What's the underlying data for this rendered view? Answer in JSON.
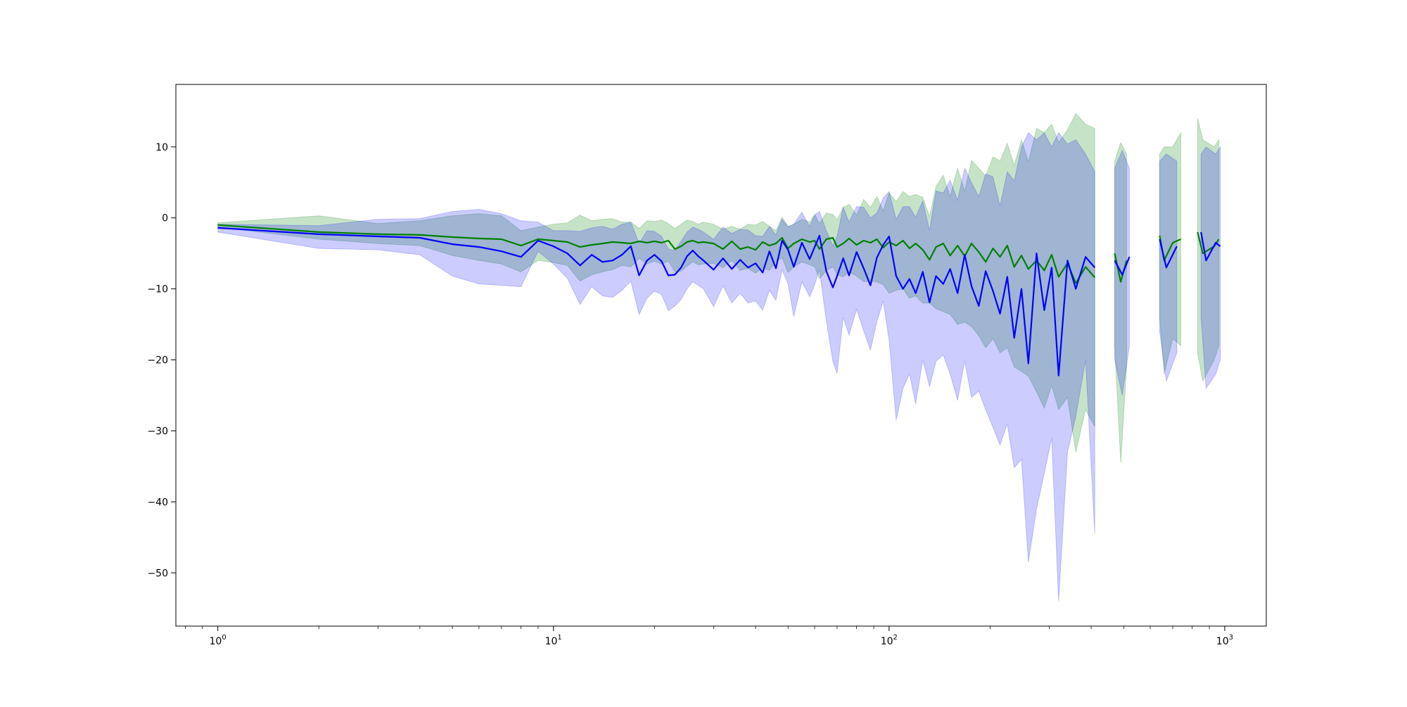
{
  "chart_data": {
    "type": "line",
    "title": "",
    "xlabel": "",
    "ylabel": "",
    "xscale": "log",
    "xlim": [
      0.75,
      1330
    ],
    "ylim": [
      -57.5,
      18.8
    ],
    "x_ticks": [
      {
        "value": 1,
        "label": "10",
        "exp": "0"
      },
      {
        "value": 10,
        "label": "10",
        "exp": "1"
      },
      {
        "value": 100,
        "label": "10",
        "exp": "2"
      },
      {
        "value": 1000,
        "label": "10",
        "exp": "3"
      }
    ],
    "y_ticks": [
      {
        "value": 10,
        "label": "10"
      },
      {
        "value": 0,
        "label": "0"
      },
      {
        "value": -10,
        "label": "−10"
      },
      {
        "value": -20,
        "label": "−20"
      },
      {
        "value": -30,
        "label": "−30"
      },
      {
        "value": -40,
        "label": "−40"
      },
      {
        "value": -50,
        "label": "−50"
      }
    ],
    "grid": false,
    "legend": "none",
    "series": [
      {
        "color": "#008000",
        "band_color": "#008000",
        "band_opacity": 0.22,
        "points": [
          [
            1,
            -1.0,
            -0.7,
            -1.3
          ],
          [
            2,
            -2.0,
            0.3,
            -3.0
          ],
          [
            3,
            -2.3,
            -0.8,
            -3.6
          ],
          [
            4,
            -2.4,
            -0.4,
            -3.9
          ],
          [
            5,
            -2.7,
            0.3,
            -5.3
          ],
          [
            6,
            -2.9,
            0.6,
            -6.0
          ],
          [
            7,
            -3.0,
            0.3,
            -6.5
          ],
          [
            8,
            -3.9,
            -1.8,
            -7.6
          ],
          [
            9,
            -3.0,
            -1.3,
            -6.0
          ],
          [
            10,
            -3.2,
            -0.9,
            -6.3
          ],
          [
            11,
            -3.4,
            -0.7,
            -6.7
          ],
          [
            12,
            -4.1,
            0.4,
            -8.9
          ],
          [
            13,
            -3.8,
            -0.4,
            -8.0
          ],
          [
            14,
            -3.6,
            -0.2,
            -7.6
          ],
          [
            15,
            -3.4,
            -0.1,
            -7.3
          ],
          [
            16,
            -3.5,
            -0.6,
            -6.7
          ],
          [
            17,
            -3.6,
            -0.6,
            -6.9
          ],
          [
            18,
            -3.3,
            -1.5,
            -5.7
          ],
          [
            19,
            -3.5,
            -0.4,
            -6.5
          ],
          [
            20,
            -3.3,
            -0.5,
            -6.1
          ],
          [
            21,
            -3.5,
            -0.3,
            -6.5
          ],
          [
            22,
            -3.2,
            -0.8,
            -6.1
          ],
          [
            23,
            -4.4,
            -1.5,
            -7.6
          ],
          [
            24,
            -4.0,
            -0.9,
            -7.5
          ],
          [
            25,
            -3.4,
            -0.3,
            -6.8
          ],
          [
            26,
            -3.2,
            -0.5,
            -6.2
          ],
          [
            27,
            -3.5,
            -0.9,
            -6.6
          ],
          [
            28,
            -3.4,
            -0.6,
            -6.5
          ],
          [
            30,
            -3.6,
            -0.9,
            -6.4
          ],
          [
            32,
            -4.4,
            -1.6,
            -7.0
          ],
          [
            34,
            -3.3,
            -1.2,
            -6.0
          ],
          [
            36,
            -4.4,
            -1.6,
            -7.4
          ],
          [
            38,
            -4.1,
            -0.9,
            -7.1
          ],
          [
            40,
            -4.5,
            -1.0,
            -7.8
          ],
          [
            42,
            -3.4,
            -0.5,
            -7.0
          ],
          [
            44,
            -3.9,
            -1.2,
            -7.4
          ],
          [
            46,
            -3.6,
            -1.8,
            -6.2
          ],
          [
            48,
            -2.8,
            0.1,
            -5.6
          ],
          [
            50,
            -4.3,
            -1.2,
            -7.7
          ],
          [
            52,
            -3.6,
            -0.9,
            -6.9
          ],
          [
            55,
            -3.0,
            -0.2,
            -6.2
          ],
          [
            58,
            -3.4,
            -0.6,
            -6.6
          ],
          [
            60,
            -3.2,
            0.5,
            -6.9
          ],
          [
            62,
            -4.4,
            -0.8,
            -8.6
          ],
          [
            65,
            -3.0,
            0.7,
            -7.4
          ],
          [
            68,
            -2.8,
            0.5,
            -6.9
          ],
          [
            70,
            -4.1,
            -0.3,
            -8.0
          ],
          [
            73,
            -3.6,
            1.5,
            -8.3
          ],
          [
            76,
            -2.9,
            1.9,
            -7.6
          ],
          [
            80,
            -3.8,
            0.4,
            -8.2
          ],
          [
            84,
            -3.2,
            2.6,
            -9.0
          ],
          [
            88,
            -3.5,
            1.5,
            -8.9
          ],
          [
            92,
            -3.0,
            3.0,
            -9.0
          ],
          [
            96,
            -4.2,
            1.0,
            -9.4
          ],
          [
            100,
            -3.4,
            3.5,
            -10.6
          ],
          [
            105,
            -3.9,
            2.3,
            -10.2
          ],
          [
            110,
            -3.2,
            3.7,
            -10.0
          ],
          [
            115,
            -4.3,
            3.0,
            -11.3
          ],
          [
            120,
            -3.6,
            3.3,
            -11.0
          ],
          [
            126,
            -4.5,
            2.9,
            -12.0
          ],
          [
            132,
            -5.9,
            0.2,
            -12.0
          ],
          [
            138,
            -4.1,
            4.4,
            -12.8
          ],
          [
            145,
            -3.6,
            6.0,
            -13.2
          ],
          [
            152,
            -5.3,
            3.0,
            -13.6
          ],
          [
            160,
            -3.9,
            7.0,
            -15.0
          ],
          [
            168,
            -5.4,
            3.8,
            -14.7
          ],
          [
            176,
            -3.6,
            8.1,
            -15.3
          ],
          [
            185,
            -4.8,
            7.0,
            -16.6
          ],
          [
            194,
            -6.2,
            5.9,
            -18.3
          ],
          [
            204,
            -4.3,
            8.6,
            -17.0
          ],
          [
            214,
            -5.5,
            8.0,
            -19.0
          ],
          [
            225,
            -3.9,
            10.5,
            -18.3
          ],
          [
            236,
            -6.9,
            7.4,
            -21.0
          ],
          [
            248,
            -5.3,
            11.0,
            -21.6
          ],
          [
            260,
            -7.2,
            7.9,
            -22.3
          ],
          [
            275,
            -6.0,
            12.6,
            -24.5
          ],
          [
            290,
            -7.4,
            12.0,
            -26.8
          ],
          [
            305,
            -5.2,
            13.2,
            -23.6
          ],
          [
            320,
            -8.3,
            10.6,
            -27.0
          ],
          [
            340,
            -6.4,
            12.4,
            -25.3
          ],
          [
            360,
            -9.2,
            14.7,
            -33.0
          ],
          [
            385,
            -6.9,
            13.2,
            -27.0
          ],
          [
            410,
            -8.4,
            12.6,
            -29.4
          ]
        ],
        "segments": [
          [
            [
              470,
              -5.0,
              8.0,
              -18.0
            ],
            [
              490,
              -9.0,
              10.6,
              -34.5
            ],
            [
              510,
              -6.0,
              9.0,
              -21.0
            ]
          ],
          [
            [
              640,
              -2.5,
              9.0,
              -14.0
            ],
            [
              660,
              -6.0,
              10.0,
              -22.0
            ],
            [
              700,
              -3.5,
              10.0,
              -17.0
            ],
            [
              740,
              -3.0,
              12.0,
              -18.0
            ]
          ],
          [
            [
              830,
              -2.0,
              14.0,
              -19.0
            ],
            [
              860,
              -5.0,
              11.0,
              -23.0
            ],
            [
              930,
              -4.0,
              10.0,
              -20.0
            ],
            [
              960,
              -3.0,
              11.0,
              -18.0
            ]
          ]
        ]
      },
      {
        "color": "#0000ff",
        "band_color": "#0000ff",
        "band_opacity": 0.2,
        "points": [
          [
            1,
            -1.4,
            -0.9,
            -2.0
          ],
          [
            2,
            -2.3,
            -1.1,
            -4.3
          ],
          [
            3,
            -2.6,
            -0.2,
            -4.5
          ],
          [
            4,
            -2.8,
            -0.1,
            -5.2
          ],
          [
            5,
            -3.7,
            0.9,
            -8.2
          ],
          [
            6,
            -4.1,
            1.2,
            -9.3
          ],
          [
            7,
            -4.7,
            0.6,
            -9.5
          ],
          [
            8,
            -5.5,
            -0.4,
            -9.7
          ],
          [
            9,
            -3.2,
            -0.6,
            -4.7
          ],
          [
            10,
            -4.0,
            -1.8,
            -6.5
          ],
          [
            11,
            -5.0,
            -1.8,
            -8.5
          ],
          [
            12,
            -6.7,
            -1.9,
            -12.2
          ],
          [
            13,
            -5.2,
            -1.4,
            -9.7
          ],
          [
            14,
            -6.2,
            -1.2,
            -11.0
          ],
          [
            15,
            -6.0,
            -1.6,
            -11.2
          ],
          [
            16,
            -5.2,
            -0.9,
            -10.2
          ],
          [
            17,
            -4.0,
            -0.6,
            -8.9
          ],
          [
            18,
            -8.1,
            -3.6,
            -13.6
          ],
          [
            19,
            -6.0,
            -1.8,
            -11.3
          ],
          [
            20,
            -5.2,
            -1.9,
            -10.3
          ],
          [
            21,
            -6.1,
            -2.6,
            -10.8
          ],
          [
            22,
            -8.1,
            -4.4,
            -13.1
          ],
          [
            23,
            -8.0,
            -4.6,
            -12.4
          ],
          [
            24,
            -7.0,
            -3.3,
            -11.5
          ],
          [
            25,
            -5.4,
            -2.0,
            -10.0
          ],
          [
            26,
            -4.6,
            -1.3,
            -9.0
          ],
          [
            27,
            -5.4,
            -1.6,
            -9.5
          ],
          [
            28,
            -6.0,
            -2.0,
            -10.0
          ],
          [
            30,
            -7.3,
            -3.0,
            -12.5
          ],
          [
            32,
            -5.7,
            -1.3,
            -9.6
          ],
          [
            34,
            -7.2,
            -2.2,
            -12.0
          ],
          [
            36,
            -5.9,
            -1.6,
            -10.6
          ],
          [
            38,
            -7.0,
            -1.7,
            -12.0
          ],
          [
            40,
            -6.4,
            -2.5,
            -11.7
          ],
          [
            42,
            -7.7,
            -2.6,
            -13.0
          ],
          [
            44,
            -4.7,
            -1.2,
            -10.2
          ],
          [
            46,
            -7.1,
            -2.4,
            -11.6
          ],
          [
            48,
            -3.2,
            -0.2,
            -7.3
          ],
          [
            50,
            -4.5,
            -1.3,
            -9.3
          ],
          [
            52,
            -6.9,
            -0.9,
            -13.9
          ],
          [
            55,
            -3.5,
            0.8,
            -9.0
          ],
          [
            58,
            -5.8,
            -1.2,
            -11.1
          ],
          [
            60,
            -4.1,
            0.4,
            -9.4
          ],
          [
            62,
            -2.5,
            0.9,
            -7.3
          ],
          [
            65,
            -7.5,
            -1.8,
            -14.5
          ],
          [
            68,
            -9.8,
            -3.9,
            -20.2
          ],
          [
            70,
            -8.2,
            -2.6,
            -21.9
          ],
          [
            73,
            -5.7,
            1.5,
            -14.0
          ],
          [
            76,
            -8.1,
            -0.6,
            -16.5
          ],
          [
            80,
            -4.8,
            1.6,
            -12.9
          ],
          [
            84,
            -7.1,
            1.5,
            -15.9
          ],
          [
            88,
            -9.5,
            0.0,
            -18.6
          ],
          [
            92,
            -5.6,
            0.7,
            -14.6
          ],
          [
            96,
            -3.8,
            2.8,
            -11.7
          ],
          [
            100,
            -2.6,
            3.7,
            -17.2
          ],
          [
            105,
            -8.2,
            -0.2,
            -28.5
          ],
          [
            110,
            -10.0,
            1.6,
            -24.0
          ],
          [
            115,
            -8.6,
            1.6,
            -22.0
          ],
          [
            120,
            -10.6,
            0.1,
            -26.2
          ],
          [
            126,
            -7.6,
            2.4,
            -20.0
          ],
          [
            132,
            -11.9,
            -1.8,
            -23.8
          ],
          [
            138,
            -8.2,
            3.8,
            -20.2
          ],
          [
            145,
            -9.3,
            3.5,
            -19.3
          ],
          [
            152,
            -7.2,
            5.3,
            -22.0
          ],
          [
            160,
            -10.6,
            2.5,
            -25.7
          ],
          [
            168,
            -5.2,
            7.0,
            -20.1
          ],
          [
            176,
            -9.6,
            5.0,
            -25.3
          ],
          [
            185,
            -12.4,
            3.0,
            -24.4
          ],
          [
            194,
            -7.5,
            6.2,
            -27.0
          ],
          [
            204,
            -10.3,
            5.8,
            -29.5
          ],
          [
            214,
            -13.5,
            1.7,
            -32.0
          ],
          [
            225,
            -8.3,
            6.5,
            -29.0
          ],
          [
            236,
            -16.9,
            5.2,
            -35.2
          ],
          [
            248,
            -10.0,
            10.0,
            -34.0
          ],
          [
            260,
            -20.5,
            12.0,
            -48.5
          ],
          [
            275,
            -5.0,
            11.0,
            -41.0
          ],
          [
            290,
            -13.0,
            12.0,
            -36.0
          ],
          [
            305,
            -7.0,
            10.0,
            -31.0
          ],
          [
            320,
            -22.2,
            12.0,
            -54.0
          ],
          [
            340,
            -6.0,
            10.4,
            -33.0
          ],
          [
            360,
            -10.0,
            11.0,
            -28.0
          ],
          [
            385,
            -5.5,
            9.0,
            -20.0
          ],
          [
            410,
            -7.0,
            6.5,
            -44.5
          ]
        ],
        "segments": [
          [
            [
              470,
              -6.0,
              7.0,
              -20.0
            ],
            [
              495,
              -8.0,
              9.5,
              -25.0
            ],
            [
              520,
              -5.5,
              7.0,
              -18.0
            ]
          ],
          [
            [
              640,
              -3.0,
              8.0,
              -16.0
            ],
            [
              670,
              -7.0,
              9.0,
              -23.0
            ],
            [
              720,
              -4.0,
              8.0,
              -19.0
            ]
          ],
          [
            [
              850,
              -2.0,
              9.0,
              -14.0
            ],
            [
              880,
              -6.0,
              10.0,
              -24.0
            ],
            [
              940,
              -3.5,
              9.0,
              -22.0
            ],
            [
              970,
              -4.0,
              10.0,
              -20.0
            ]
          ]
        ]
      }
    ]
  }
}
